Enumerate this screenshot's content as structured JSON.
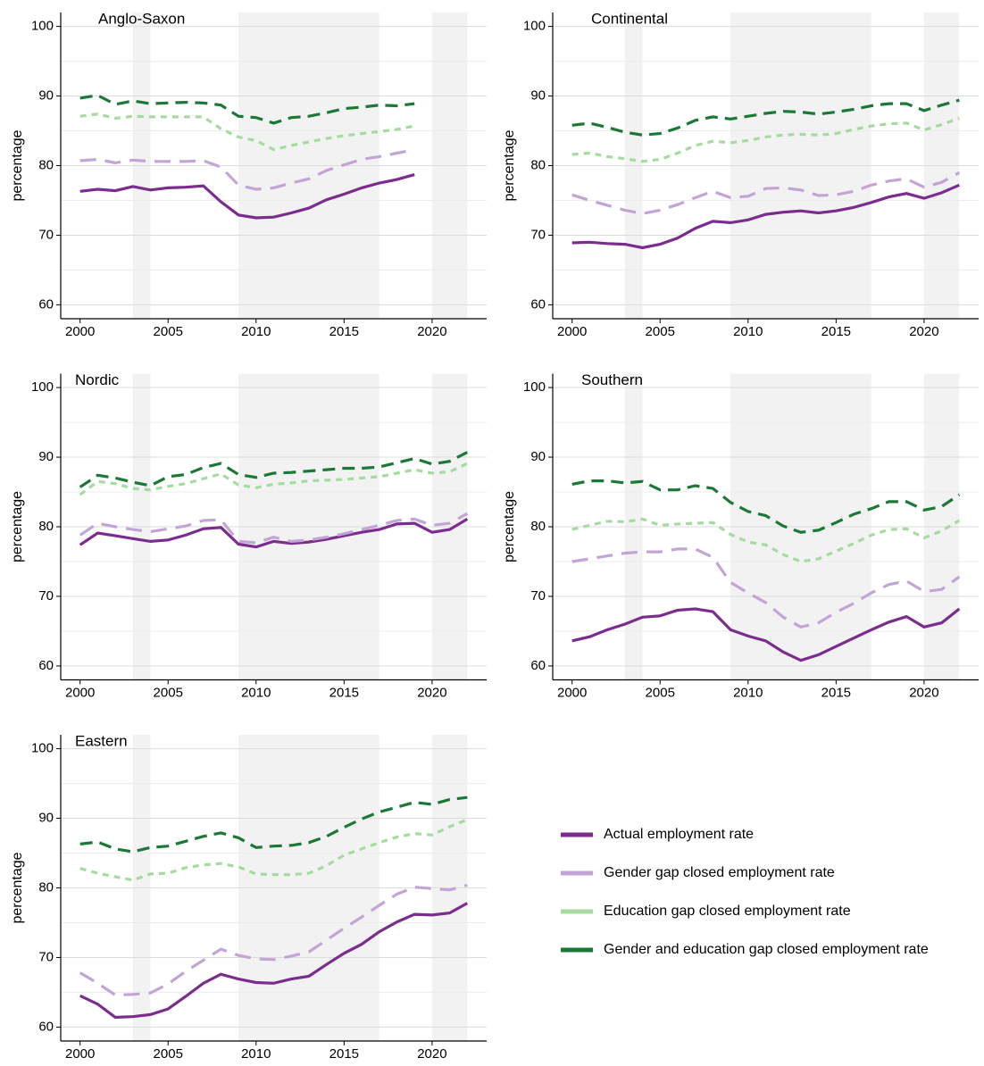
{
  "chart_data": [
    {
      "type": "line",
      "title": "Anglo-Saxon",
      "y_label": "percentage",
      "x": [
        2000,
        2001,
        2002,
        2003,
        2004,
        2005,
        2006,
        2007,
        2008,
        2009,
        2010,
        2011,
        2012,
        2013,
        2014,
        2015,
        2016,
        2017,
        2018,
        2019,
        2020,
        2021,
        2022
      ],
      "xlim": [
        1998.9,
        2023.1
      ],
      "xticks": [
        2000,
        2005,
        2010,
        2015,
        2020
      ],
      "ylim": [
        58,
        102
      ],
      "yticks": [
        60,
        70,
        80,
        90,
        100
      ],
      "minor_grid": [
        65,
        75,
        85,
        95
      ],
      "grid": true,
      "shaded_periods": [
        [
          2003,
          2004
        ],
        [
          2009,
          2017
        ],
        [
          2020,
          2022
        ]
      ],
      "shade_color": "#f2f2f2",
      "series": [
        {
          "name": "Actual employment rate",
          "color": "#7b2d8e",
          "dash": "solid",
          "values": [
            76.3,
            76.6,
            76.4,
            77.0,
            76.5,
            76.8,
            76.9,
            77.1,
            74.8,
            72.9,
            72.5,
            72.6,
            73.2,
            73.9,
            75.1,
            75.9,
            76.8,
            77.5,
            78.0,
            78.7,
            null,
            null,
            null
          ]
        },
        {
          "name": "Gender gap closed employment rate",
          "color": "#c2a5d6",
          "dash": "long",
          "values": [
            80.7,
            80.9,
            80.4,
            80.8,
            80.6,
            80.6,
            80.6,
            80.7,
            79.8,
            77.2,
            76.6,
            76.8,
            77.5,
            78.1,
            79.3,
            80.1,
            80.9,
            81.3,
            81.8,
            82.3,
            null,
            null,
            null
          ]
        },
        {
          "name": "Education gap closed employment rate",
          "color": "#a6dba0",
          "dash": "short",
          "values": [
            87.1,
            87.4,
            86.8,
            87.1,
            87.0,
            87.0,
            87.0,
            87.0,
            85.3,
            84.1,
            83.6,
            82.3,
            82.9,
            83.4,
            83.9,
            84.3,
            84.6,
            84.9,
            85.2,
            85.7,
            null,
            null,
            null
          ]
        },
        {
          "name": "Gender and education gap closed employment rate",
          "color": "#1b7837",
          "dash": "medium",
          "values": [
            89.7,
            90.1,
            88.8,
            89.3,
            88.9,
            89.0,
            89.1,
            89.0,
            88.7,
            87.1,
            86.9,
            86.1,
            86.9,
            87.1,
            87.6,
            88.2,
            88.4,
            88.7,
            88.6,
            88.9,
            null,
            null,
            null
          ]
        }
      ]
    },
    {
      "type": "line",
      "title": "Continental",
      "y_label": "percentage",
      "x": [
        2000,
        2001,
        2002,
        2003,
        2004,
        2005,
        2006,
        2007,
        2008,
        2009,
        2010,
        2011,
        2012,
        2013,
        2014,
        2015,
        2016,
        2017,
        2018,
        2019,
        2020,
        2021,
        2022
      ],
      "xlim": [
        1998.9,
        2023.1
      ],
      "xticks": [
        2000,
        2005,
        2010,
        2015,
        2020
      ],
      "ylim": [
        58,
        102
      ],
      "yticks": [
        60,
        70,
        80,
        90,
        100
      ],
      "minor_grid": [
        65,
        75,
        85,
        95
      ],
      "grid": true,
      "shaded_periods": [
        [
          2003,
          2004
        ],
        [
          2009,
          2017
        ],
        [
          2020,
          2022
        ]
      ],
      "shade_color": "#f2f2f2",
      "series": [
        {
          "name": "Actual employment rate",
          "color": "#7b2d8e",
          "dash": "solid",
          "values": [
            68.9,
            69.0,
            68.8,
            68.7,
            68.2,
            68.7,
            69.6,
            71.0,
            72.0,
            71.8,
            72.2,
            73.0,
            73.3,
            73.5,
            73.2,
            73.5,
            74.0,
            74.7,
            75.5,
            76.0,
            75.3,
            76.1,
            77.2
          ]
        },
        {
          "name": "Gender gap closed employment rate",
          "color": "#c2a5d6",
          "dash": "long",
          "values": [
            75.8,
            75.0,
            74.3,
            73.6,
            73.1,
            73.6,
            74.4,
            75.4,
            76.3,
            75.4,
            75.6,
            76.7,
            76.8,
            76.5,
            75.7,
            75.8,
            76.3,
            77.2,
            77.8,
            78.1,
            76.9,
            77.6,
            79.0
          ]
        },
        {
          "name": "Education gap closed employment rate",
          "color": "#a6dba0",
          "dash": "short",
          "values": [
            81.6,
            81.8,
            81.3,
            81.0,
            80.6,
            80.9,
            81.8,
            82.9,
            83.5,
            83.3,
            83.6,
            84.1,
            84.4,
            84.5,
            84.4,
            84.6,
            85.2,
            85.7,
            86.0,
            86.1,
            85.1,
            85.9,
            86.8
          ]
        },
        {
          "name": "Gender and education gap closed employment rate",
          "color": "#1b7837",
          "dash": "medium",
          "values": [
            85.8,
            86.1,
            85.5,
            84.8,
            84.4,
            84.6,
            85.4,
            86.5,
            87.0,
            86.7,
            87.1,
            87.5,
            87.8,
            87.7,
            87.4,
            87.7,
            88.1,
            88.6,
            88.9,
            88.9,
            87.9,
            88.7,
            89.4
          ]
        }
      ]
    },
    {
      "type": "line",
      "title": "Nordic",
      "y_label": "percentage",
      "x": [
        2000,
        2001,
        2002,
        2003,
        2004,
        2005,
        2006,
        2007,
        2008,
        2009,
        2010,
        2011,
        2012,
        2013,
        2014,
        2015,
        2016,
        2017,
        2018,
        2019,
        2020,
        2021,
        2022
      ],
      "xlim": [
        1998.9,
        2023.1
      ],
      "xticks": [
        2000,
        2005,
        2010,
        2015,
        2020
      ],
      "ylim": [
        58,
        102
      ],
      "yticks": [
        60,
        70,
        80,
        90,
        100
      ],
      "minor_grid": [
        65,
        75,
        85,
        95
      ],
      "grid": true,
      "shaded_periods": [
        [
          2003,
          2004
        ],
        [
          2009,
          2017
        ],
        [
          2020,
          2022
        ]
      ],
      "shade_color": "#f2f2f2",
      "series": [
        {
          "name": "Actual employment rate",
          "color": "#7b2d8e",
          "dash": "solid",
          "values": [
            77.4,
            79.1,
            78.7,
            78.3,
            77.9,
            78.1,
            78.8,
            79.7,
            79.9,
            77.5,
            77.1,
            77.9,
            77.6,
            77.8,
            78.2,
            78.7,
            79.2,
            79.6,
            80.4,
            80.5,
            79.2,
            79.6,
            81.1
          ]
        },
        {
          "name": "Gender gap closed employment rate",
          "color": "#c2a5d6",
          "dash": "long",
          "values": [
            78.8,
            80.5,
            80.0,
            79.6,
            79.3,
            79.7,
            80.1,
            80.9,
            81.0,
            77.9,
            77.7,
            78.5,
            77.9,
            78.1,
            78.5,
            79.0,
            79.6,
            80.2,
            80.9,
            81.1,
            80.2,
            80.5,
            81.9
          ]
        },
        {
          "name": "Education gap closed employment rate",
          "color": "#a6dba0",
          "dash": "short",
          "values": [
            84.6,
            86.5,
            86.2,
            85.5,
            85.3,
            85.8,
            86.2,
            86.9,
            87.6,
            86.0,
            85.6,
            86.1,
            86.3,
            86.6,
            86.7,
            86.8,
            87.0,
            87.2,
            87.7,
            88.2,
            87.7,
            87.9,
            89.1
          ]
        },
        {
          "name": "Gender and education gap closed employment rate",
          "color": "#1b7837",
          "dash": "medium",
          "values": [
            85.7,
            87.4,
            87.0,
            86.4,
            85.9,
            87.2,
            87.5,
            88.5,
            89.1,
            87.5,
            87.1,
            87.7,
            87.8,
            88.0,
            88.2,
            88.4,
            88.4,
            88.6,
            89.2,
            89.8,
            89.0,
            89.4,
            90.7
          ]
        }
      ]
    },
    {
      "type": "line",
      "title": "Southern",
      "y_label": "percentage",
      "x": [
        2000,
        2001,
        2002,
        2003,
        2004,
        2005,
        2006,
        2007,
        2008,
        2009,
        2010,
        2011,
        2012,
        2013,
        2014,
        2015,
        2016,
        2017,
        2018,
        2019,
        2020,
        2021,
        2022
      ],
      "xlim": [
        1998.9,
        2023.1
      ],
      "xticks": [
        2000,
        2005,
        2010,
        2015,
        2020
      ],
      "ylim": [
        58,
        102
      ],
      "yticks": [
        60,
        70,
        80,
        90,
        100
      ],
      "minor_grid": [
        65,
        75,
        85,
        95
      ],
      "grid": true,
      "shaded_periods": [
        [
          2003,
          2004
        ],
        [
          2009,
          2017
        ],
        [
          2020,
          2022
        ]
      ],
      "shade_color": "#f2f2f2",
      "series": [
        {
          "name": "Actual employment rate",
          "color": "#7b2d8e",
          "dash": "solid",
          "values": [
            63.6,
            64.2,
            65.2,
            66.0,
            67.0,
            67.2,
            68.0,
            68.2,
            67.8,
            65.2,
            64.3,
            63.6,
            62.0,
            60.8,
            61.6,
            62.8,
            64.0,
            65.2,
            66.3,
            67.1,
            65.6,
            66.2,
            68.2
          ]
        },
        {
          "name": "Gender gap closed employment rate",
          "color": "#c2a5d6",
          "dash": "long",
          "values": [
            75.0,
            75.4,
            75.8,
            76.2,
            76.4,
            76.4,
            76.8,
            76.8,
            75.6,
            72.0,
            70.5,
            69.1,
            67.0,
            65.6,
            66.2,
            67.7,
            69.0,
            70.5,
            71.7,
            72.2,
            70.7,
            71.0,
            72.8
          ]
        },
        {
          "name": "Education gap closed employment rate",
          "color": "#a6dba0",
          "dash": "short",
          "values": [
            79.6,
            80.2,
            80.8,
            80.7,
            81.1,
            80.2,
            80.4,
            80.5,
            80.6,
            78.9,
            77.8,
            77.4,
            76.0,
            75.0,
            75.4,
            76.5,
            77.6,
            78.8,
            79.6,
            79.7,
            78.4,
            79.4,
            80.9
          ]
        },
        {
          "name": "Gender and education gap closed employment rate",
          "color": "#1b7837",
          "dash": "medium",
          "values": [
            86.1,
            86.6,
            86.6,
            86.3,
            86.5,
            85.3,
            85.3,
            85.9,
            85.5,
            83.5,
            82.2,
            81.6,
            80.1,
            79.2,
            79.5,
            80.6,
            81.8,
            82.6,
            83.6,
            83.6,
            82.4,
            82.9,
            84.6
          ]
        }
      ]
    },
    {
      "type": "line",
      "title": "Eastern",
      "y_label": "percentage",
      "x": [
        2000,
        2001,
        2002,
        2003,
        2004,
        2005,
        2006,
        2007,
        2008,
        2009,
        2010,
        2011,
        2012,
        2013,
        2014,
        2015,
        2016,
        2017,
        2018,
        2019,
        2020,
        2021,
        2022
      ],
      "xlim": [
        1998.9,
        2023.1
      ],
      "xticks": [
        2000,
        2005,
        2010,
        2015,
        2020
      ],
      "ylim": [
        58,
        102
      ],
      "yticks": [
        60,
        70,
        80,
        90,
        100
      ],
      "minor_grid": [
        65,
        75,
        85,
        95
      ],
      "grid": true,
      "shaded_periods": [
        [
          2003,
          2004
        ],
        [
          2009,
          2017
        ],
        [
          2020,
          2022
        ]
      ],
      "shade_color": "#f2f2f2",
      "series": [
        {
          "name": "Actual employment rate",
          "color": "#7b2d8e",
          "dash": "solid",
          "values": [
            64.5,
            63.3,
            61.4,
            61.5,
            61.8,
            62.6,
            64.4,
            66.3,
            67.6,
            66.9,
            66.4,
            66.3,
            66.9,
            67.3,
            69.0,
            70.6,
            71.9,
            73.7,
            75.1,
            76.2,
            76.1,
            76.4,
            77.8
          ]
        },
        {
          "name": "Gender gap closed employment rate",
          "color": "#c2a5d6",
          "dash": "long",
          "values": [
            67.8,
            66.3,
            64.6,
            64.7,
            64.9,
            66.2,
            68.0,
            69.6,
            71.2,
            70.3,
            69.8,
            69.7,
            70.2,
            70.8,
            72.5,
            74.2,
            75.8,
            77.5,
            79.1,
            80.1,
            79.9,
            79.7,
            80.4
          ]
        },
        {
          "name": "Education gap closed employment rate",
          "color": "#a6dba0",
          "dash": "short",
          "values": [
            82.8,
            82.1,
            81.6,
            81.1,
            82.0,
            82.1,
            82.9,
            83.3,
            83.5,
            83.0,
            82.0,
            81.9,
            81.9,
            82.1,
            83.2,
            84.7,
            85.6,
            86.5,
            87.3,
            87.8,
            87.6,
            88.8,
            89.8
          ]
        },
        {
          "name": "Gender and education gap closed employment rate",
          "color": "#1b7837",
          "dash": "medium",
          "values": [
            86.3,
            86.6,
            85.6,
            85.2,
            85.8,
            86.0,
            86.7,
            87.4,
            87.9,
            87.2,
            85.8,
            86.0,
            86.1,
            86.5,
            87.4,
            88.7,
            89.9,
            90.9,
            91.6,
            92.3,
            92.0,
            92.7,
            93.0
          ]
        }
      ]
    }
  ]
}
